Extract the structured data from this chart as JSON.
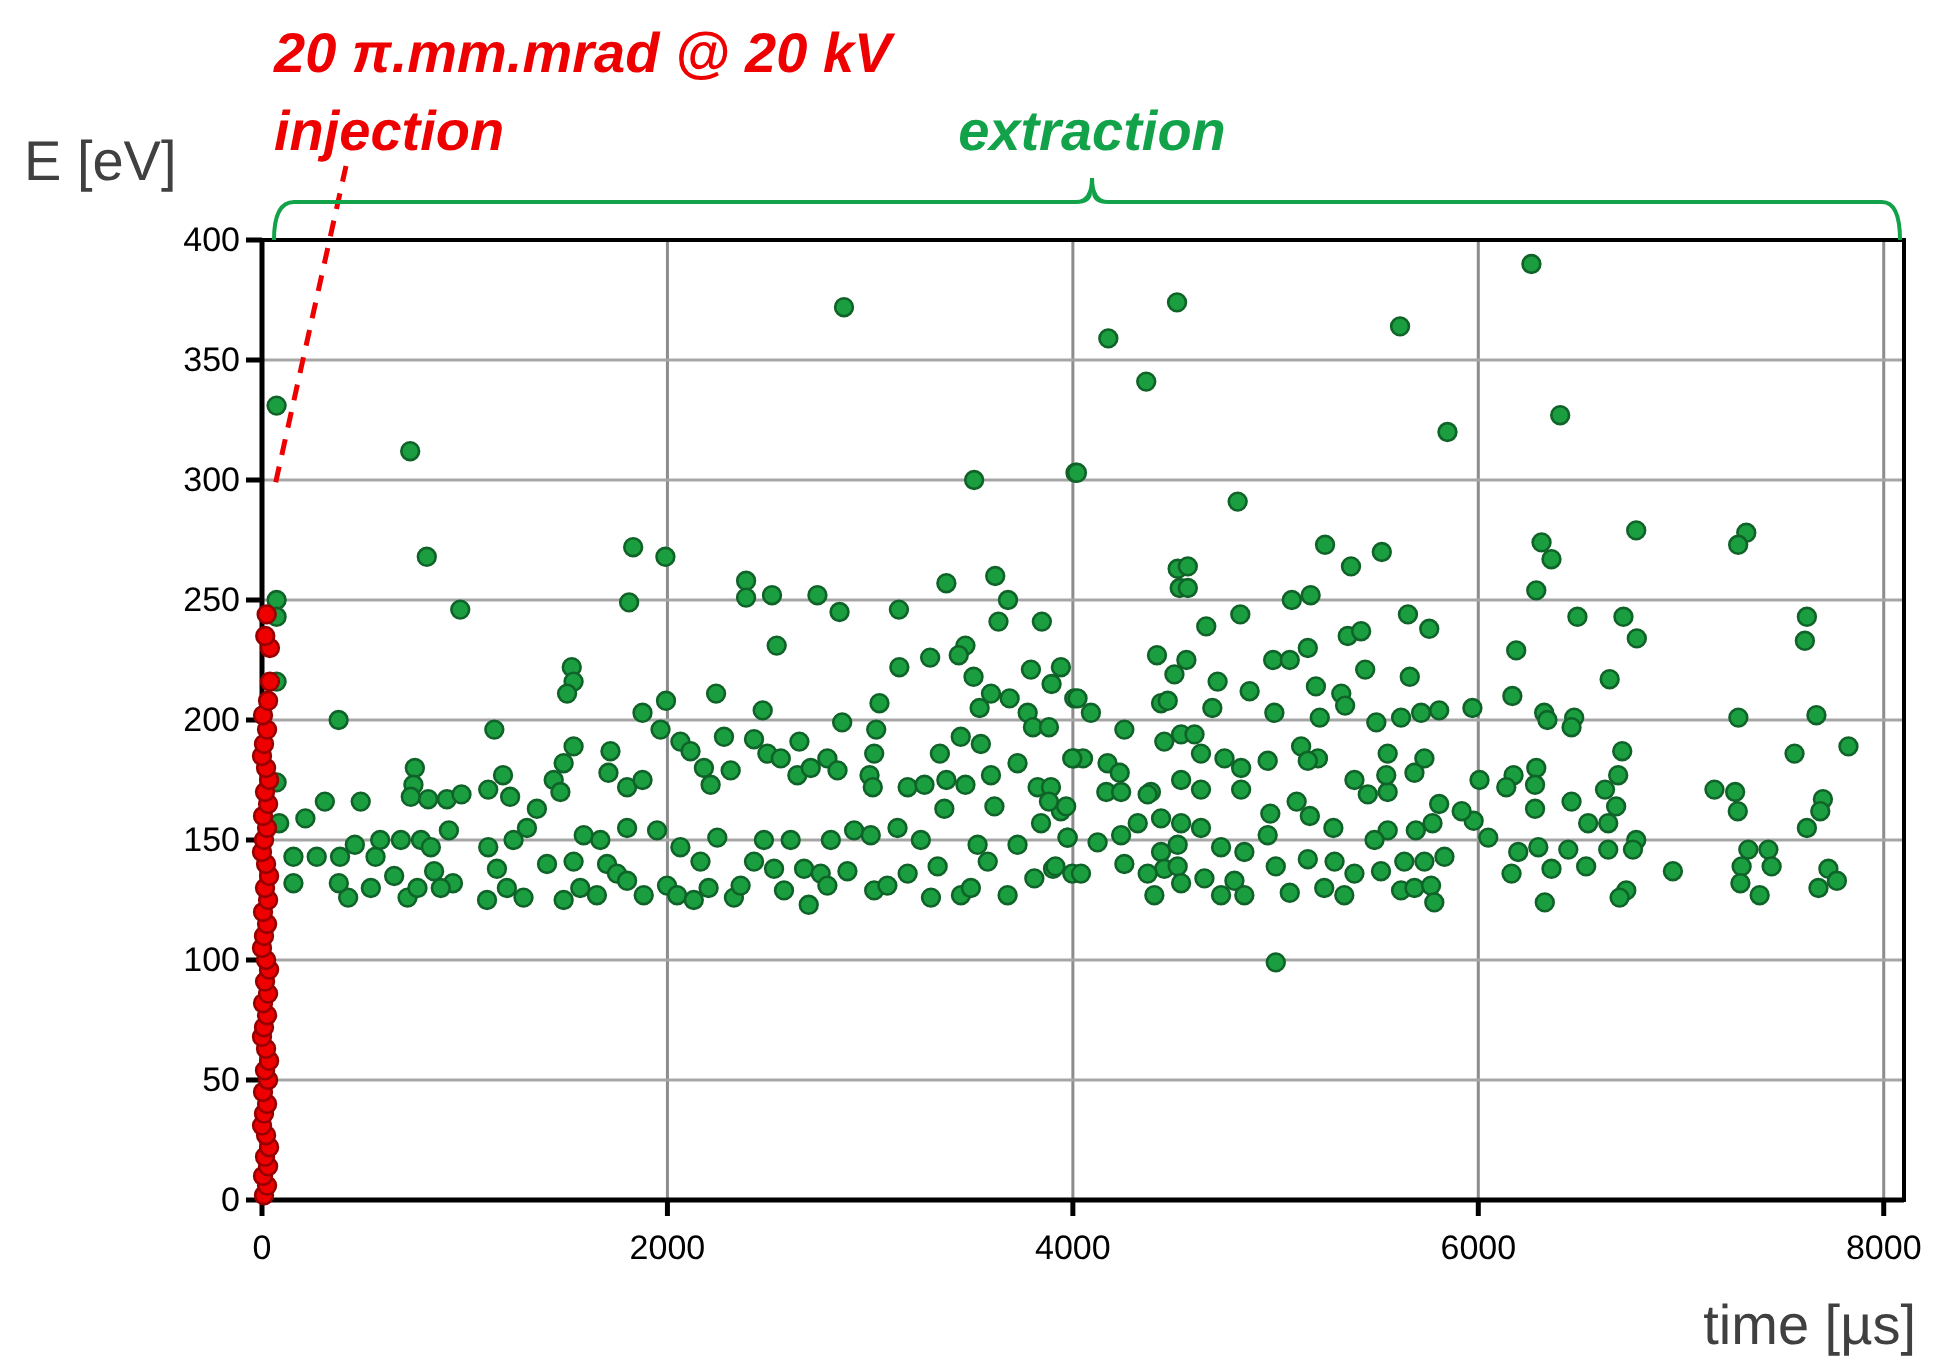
{
  "chart_data": {
    "type": "scatter",
    "xlabel": "time [µs]",
    "ylabel": "E [eV]",
    "xlim": [
      0,
      8100
    ],
    "ylim": [
      0,
      400
    ],
    "xticks": [
      0,
      2000,
      4000,
      6000,
      8000
    ],
    "yticks": [
      0,
      50,
      100,
      150,
      200,
      250,
      300,
      350,
      400
    ],
    "grid": true,
    "marker": "circle",
    "annotations": [
      "20 π.mm.mrad @ 20 kV",
      "injection",
      "extraction"
    ],
    "series": [
      {
        "color": "#1a9e3f",
        "x": [
          72,
          731,
          813,
          978,
          2871,
          3513,
          4013,
          378,
          1831,
          1811,
          1990,
          2388,
          2388,
          2516,
          2539,
          2740,
          2849,
          3142,
          3376,
          3617,
          3680,
          3633,
          3847,
          3144,
          3296,
          3470,
          3437,
          3510,
          3793,
          3941,
          3895,
          1528,
          1537,
          1505,
          2240,
          2470,
          3046,
          2862,
          1993,
          1877,
          1966,
          1146,
          3540,
          3596,
          3688,
          3777,
          3803,
          3882,
          4007,
          754,
          747,
          734,
          820,
          912,
          984,
          310,
          487,
          214,
          1189,
          1224,
          1116,
          1488,
          1537,
          1439,
          1472,
          1719,
          1709,
          1801,
          1877,
          2064,
          2114,
          2180,
          2213,
          2279,
          2312,
          2427,
          2493,
          2559,
          2651,
          2641,
          2707,
          2789,
          2839,
          2997,
          3020,
          3030,
          3013,
          3185,
          3268,
          3344,
          3376,
          3470,
          3447,
          3546,
          3596,
          3727,
          3826,
          3892,
          4007,
          155,
          155,
          270,
          385,
          458,
          425,
          379,
          560,
          583,
          537,
          652,
          718,
          685,
          784,
          833,
          767,
          849,
          942,
          922,
          882,
          1116,
          1110,
          1159,
          1208,
          1290,
          1241,
          1307,
          1356,
          1406,
          1488,
          1537,
          1570,
          1587,
          1652,
          1702,
          1751,
          1669,
          1801,
          1801,
          1883,
          1949,
          1998,
          2048,
          2064,
          2130,
          2163,
          2203,
          2246,
          2328,
          2361,
          2427,
          2476,
          2526,
          2575,
          2608,
          2674,
          2697,
          2756,
          2806,
          2789,
          2888,
          2921,
          3003,
          3020,
          3085,
          3135,
          3185,
          3250,
          3300,
          3333,
          3366,
          3448,
          3497,
          3530,
          3580,
          3613,
          3678,
          3727,
          3810,
          3843,
          3902,
          3941,
          3974,
          3997,
          6262,
          4514,
          4175,
          4362,
          5614,
          5848,
          6404,
          4020,
          4813,
          5244,
          5372,
          5524,
          4517,
          4567,
          4527,
          4567,
          5080,
          5173,
          4658,
          4826,
          5653,
          5758,
          6312,
          6361,
          6286,
          6779,
          7322,
          7282,
          7621,
          7611,
          6489,
          6716,
          6782,
          6187,
          6648,
          5356,
          5422,
          5159,
          4988,
          5070,
          4415,
          4560,
          4501,
          4714,
          4872,
          5442,
          5662,
          5199,
          5324,
          5343,
          4994,
          4688,
          4435,
          4468,
          4023,
          4089,
          4254,
          5218,
          5497,
          5619,
          5718,
          5807,
          5971,
          6168,
          6325,
          6341,
          6473,
          6460,
          7283,
          7668,
          7826,
          7560,
          6710,
          6690,
          6625,
          6286,
          6174,
          6280,
          6138,
          6006,
          7165,
          7267,
          7280,
          7700,
          7687,
          7621,
          6280,
          6460,
          6542,
          6680,
          6641,
          6779,
          6763,
          6641,
          6444,
          6296,
          6197,
          6164,
          6361,
          6532,
          6730,
          6697,
          6328,
          6960,
          7332,
          7431,
          7299,
          7447,
          7293,
          7388,
          7727,
          7769,
          7678,
          6049,
          5977,
          5918,
          4171,
          4231,
          4165,
          4238,
          4385,
          4451,
          4534,
          4600,
          4632,
          4534,
          4632,
          4748,
          4830,
          4830,
          4961,
          5126,
          5209,
          5159,
          5389,
          5455,
          5553,
          5553,
          5546,
          5685,
          5734,
          4974,
          5104,
          5169,
          5285,
          5807,
          5774,
          5692,
          5553,
          5488,
          5389,
          5339,
          5240,
          5070,
          5001,
          5159,
          5291,
          5520,
          5619,
          5685,
          5767,
          5783,
          5833,
          5734,
          5635,
          4961,
          4846,
          4797,
          4846,
          4731,
          4649,
          4731,
          4632,
          4534,
          4517,
          4435,
          4451,
          4517,
          4534,
          4402,
          4369,
          4254,
          4238,
          4320,
          4369,
          4122,
          4040,
          3974,
          3914,
          3882,
          3967,
          4050,
          3997,
          5001,
          4435,
          72,
          72,
          72,
          72,
          85
        ],
        "values": [
          331,
          312,
          268,
          246,
          372,
          300,
          303,
          200,
          272,
          249,
          268,
          258,
          251,
          252,
          231,
          252,
          245,
          246,
          257,
          260,
          250,
          241,
          241,
          222,
          226,
          231,
          227,
          218,
          221,
          222,
          215,
          222,
          216,
          211,
          211,
          204,
          207,
          199,
          208,
          203,
          196,
          196,
          205,
          211,
          209,
          203,
          197,
          197,
          209,
          180,
          173,
          168,
          167,
          167,
          169,
          166,
          166,
          159,
          177,
          168,
          171,
          182,
          189,
          175,
          170,
          187,
          178,
          172,
          175,
          191,
          187,
          180,
          173,
          193,
          179,
          192,
          186,
          184,
          191,
          177,
          180,
          184,
          179,
          177,
          186,
          196,
          172,
          172,
          173,
          186,
          175,
          173,
          193,
          190,
          177,
          182,
          172,
          172,
          184,
          143,
          132,
          143,
          143,
          148,
          126,
          132,
          143,
          150,
          130,
          135,
          126,
          150,
          150,
          147,
          130,
          137,
          132,
          154,
          130,
          147,
          125,
          138,
          130,
          126,
          150,
          155,
          163,
          140,
          125,
          141,
          130,
          152,
          127,
          140,
          136,
          150,
          133,
          155,
          127,
          154,
          131,
          127,
          147,
          125,
          141,
          130,
          151,
          126,
          131,
          141,
          150,
          138,
          129,
          150,
          138,
          123,
          136,
          150,
          131,
          137,
          154,
          152,
          129,
          131,
          155,
          136,
          150,
          126,
          139,
          163,
          127,
          130,
          148,
          141,
          164,
          127,
          148,
          134,
          157,
          138,
          162,
          151,
          136,
          390,
          374,
          359,
          341,
          364,
          320,
          327,
          303,
          291,
          273,
          264,
          270,
          263,
          264,
          255,
          255,
          250,
          252,
          239,
          244,
          244,
          238,
          274,
          267,
          254,
          279,
          278,
          273,
          243,
          233,
          243,
          243,
          234,
          229,
          217,
          235,
          237,
          230,
          225,
          225,
          227,
          225,
          219,
          216,
          212,
          221,
          218,
          214,
          211,
          206,
          203,
          205,
          207,
          208,
          209,
          203,
          196,
          201,
          199,
          201,
          203,
          204,
          205,
          210,
          203,
          200,
          201,
          197,
          201,
          202,
          189,
          186,
          187,
          177,
          171,
          180,
          177,
          173,
          172,
          175,
          171,
          170,
          162,
          167,
          162,
          155,
          163,
          166,
          157,
          164,
          157,
          150,
          146,
          146,
          146,
          147,
          145,
          136,
          138,
          139,
          129,
          126,
          124,
          137,
          146,
          146,
          139,
          139,
          132,
          127,
          138,
          133,
          130,
          151,
          158,
          162,
          182,
          178,
          170,
          170,
          170,
          191,
          194,
          194,
          186,
          175,
          171,
          184,
          180,
          171,
          183,
          189,
          184,
          183,
          175,
          169,
          170,
          186,
          177,
          178,
          184,
          161,
          166,
          160,
          155,
          165,
          157,
          154,
          154,
          150,
          136,
          127,
          130,
          128,
          139,
          142,
          141,
          137,
          129,
          130,
          131,
          124,
          143,
          141,
          141,
          152,
          145,
          133,
          127,
          127,
          134,
          147,
          155,
          157,
          148,
          145,
          138,
          139,
          132,
          127,
          136,
          140,
          152,
          157,
          169,
          149,
          136,
          151,
          139,
          166,
          164,
          184,
          184,
          99,
          159,
          250,
          243,
          216,
          174,
          157
        ]
      },
      {
        "color": "#ee0000",
        "x": [
          10,
          25,
          5,
          30,
          15,
          35,
          20,
          0,
          10,
          25,
          5,
          30,
          15,
          35,
          20,
          0,
          10,
          25,
          5,
          30,
          15,
          35,
          20,
          0,
          10,
          25,
          5,
          30,
          15,
          35,
          20,
          0,
          10,
          25,
          5,
          30,
          15,
          35,
          20,
          0,
          10,
          25,
          5,
          30,
          39,
          39,
          16,
          23
        ],
        "values": [
          2,
          6,
          10,
          14,
          18,
          22,
          27,
          31,
          36,
          40,
          45,
          50,
          54,
          58,
          63,
          68,
          72,
          77,
          82,
          86,
          91,
          96,
          100,
          105,
          110,
          115,
          120,
          125,
          130,
          135,
          140,
          145,
          150,
          155,
          160,
          165,
          170,
          175,
          180,
          185,
          190,
          196,
          202,
          208,
          216,
          230,
          235,
          244
        ]
      }
    ]
  }
}
